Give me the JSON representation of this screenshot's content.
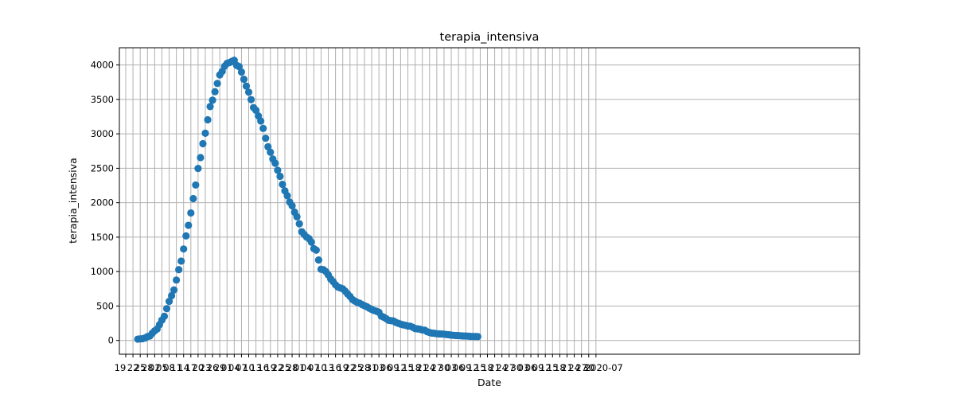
{
  "chart_data": {
    "type": "scatter",
    "title": "terapia_intensiva",
    "xlabel": "Date",
    "ylabel": "terapia_intensiva",
    "x_start": "2020-02-24",
    "ylim": [
      -200,
      4250
    ],
    "yticks": [
      0,
      500,
      1000,
      1500,
      2000,
      2500,
      3000,
      3500,
      4000
    ],
    "xtick_labels": [
      "19",
      "22",
      "25",
      "28",
      "02",
      "05",
      "08",
      "11",
      "14",
      "17",
      "20",
      "23",
      "26",
      "29",
      "01",
      "04",
      "07",
      "10",
      "13",
      "16",
      "19",
      "22",
      "25",
      "28",
      "01",
      "04",
      "07",
      "10",
      "13",
      "16",
      "19",
      "22",
      "25",
      "28",
      "31",
      "03",
      "06",
      "09",
      "12",
      "15",
      "18",
      "21",
      "24",
      "27",
      "30",
      "03",
      "06",
      "09",
      "12",
      "15",
      "18",
      "21",
      "24",
      "27",
      "30",
      "03",
      "06",
      "09",
      "12",
      "15",
      "18",
      "21",
      "24",
      "27",
      "30",
      "2020-07"
    ],
    "grid": true,
    "legend": "none",
    "marker_color": "#1f77b4",
    "values": [
      19,
      23,
      26,
      36,
      56,
      64,
      105,
      140,
      166,
      229,
      295,
      351,
      462,
      567,
      650,
      733,
      877,
      1028,
      1153,
      1328,
      1518,
      1672,
      1851,
      2060,
      2257,
      2498,
      2655,
      2857,
      3009,
      3204,
      3396,
      3489,
      3612,
      3732,
      3856,
      3906,
      3981,
      4023,
      4035,
      4053,
      4068,
      3994,
      3977,
      3898,
      3792,
      3693,
      3605,
      3497,
      3381,
      3343,
      3260,
      3186,
      3079,
      2936,
      2812,
      2733,
      2635,
      2573,
      2471,
      2384,
      2267,
      2173,
      2102,
      2009,
      1956,
      1863,
      1795,
      1694,
      1578,
      1539,
      1501,
      1479,
      1427,
      1333,
      1311,
      1168,
      1034,
      1027,
      999,
      952,
      893,
      855,
      808,
      775,
      762,
      749,
      716,
      676,
      640,
      595,
      572,
      553,
      541,
      521,
      505,
      489,
      468,
      450,
      435,
      424,
      408,
      353,
      338,
      316,
      293,
      287,
      283,
      263,
      249,
      236,
      227,
      220,
      209,
      207,
      192,
      173,
      168,
      163,
      152,
      148,
      127,
      115,
      107,
      103,
      97,
      95,
      94,
      90,
      86,
      83,
      77,
      74,
      72,
      71,
      67,
      65,
      64,
      62,
      59,
      58,
      57,
      56
    ]
  }
}
